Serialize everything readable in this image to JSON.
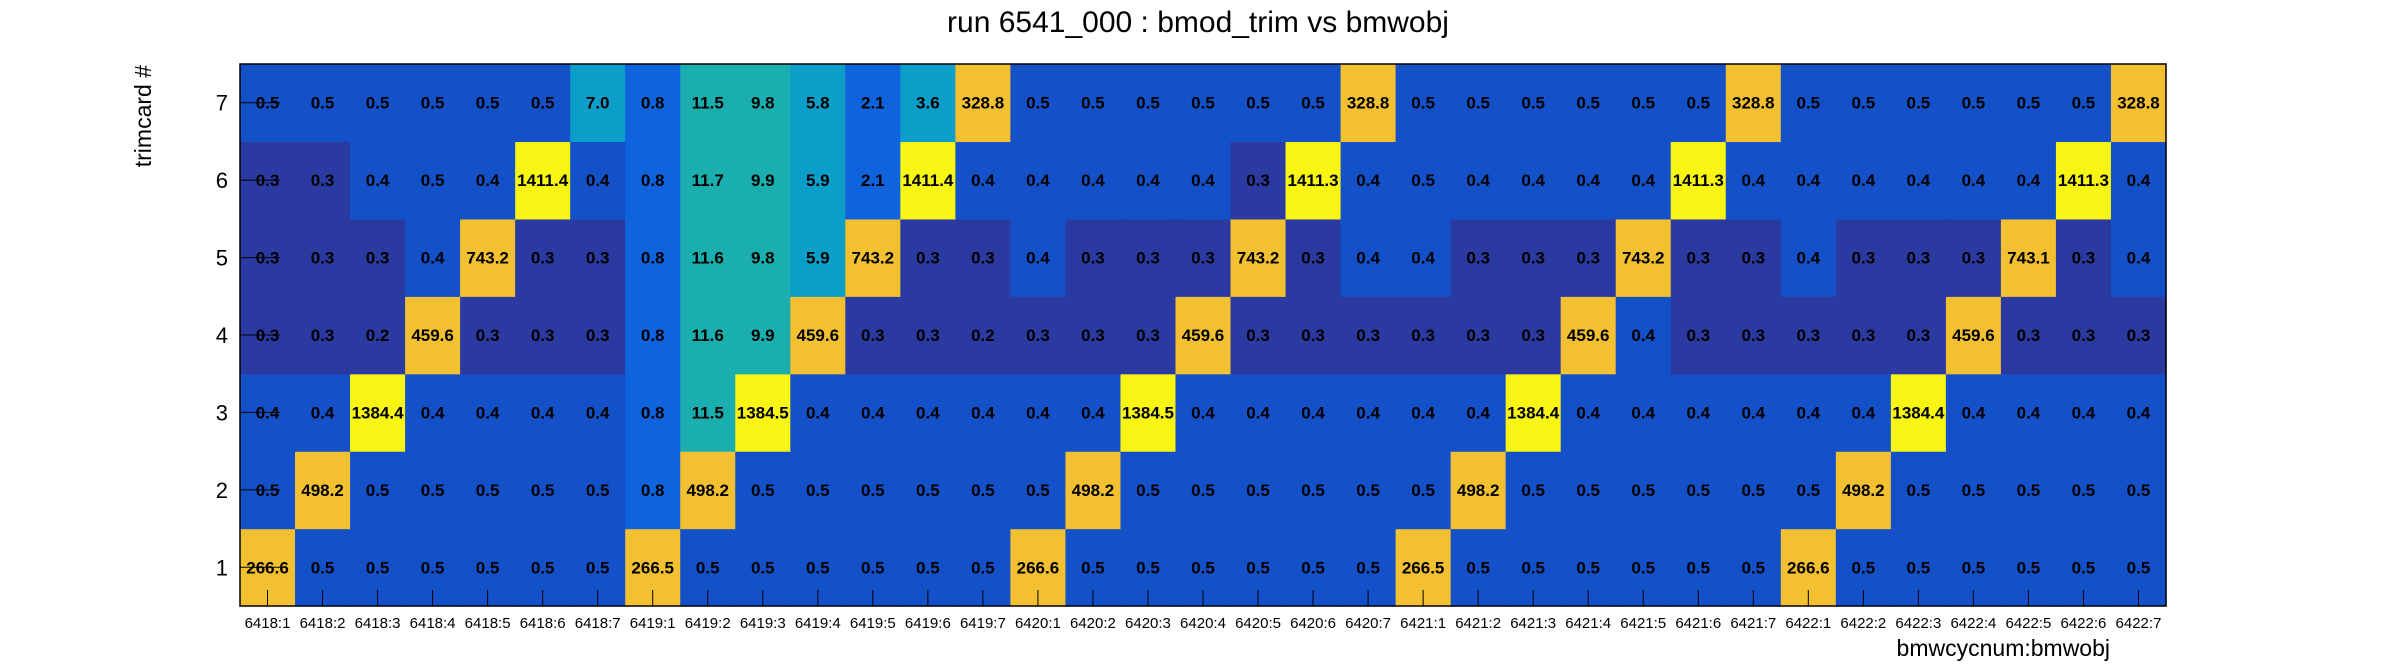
{
  "chart_data": {
    "type": "heatmap",
    "title": "run 6541_000 : bmod_trim vs bmwobj",
    "xlabel": "bmwcycnum:bmwobj",
    "ylabel": "trimcard #",
    "x_categories": [
      "6418:1",
      "6418:2",
      "6418:3",
      "6418:4",
      "6418:5",
      "6418:6",
      "6418:7",
      "6419:1",
      "6419:2",
      "6419:3",
      "6419:4",
      "6419:5",
      "6419:6",
      "6419:7",
      "6420:1",
      "6420:2",
      "6420:3",
      "6420:4",
      "6420:5",
      "6420:6",
      "6420:7",
      "6421:1",
      "6421:2",
      "6421:3",
      "6421:4",
      "6421:5",
      "6421:6",
      "6421:7",
      "6422:1",
      "6422:2",
      "6422:3",
      "6422:4",
      "6422:5",
      "6422:6",
      "6422:7"
    ],
    "y_categories": [
      "1",
      "2",
      "3",
      "4",
      "5",
      "6",
      "7"
    ],
    "values": [
      [
        266.6,
        0.5,
        0.5,
        0.5,
        0.5,
        0.5,
        0.5,
        266.5,
        0.5,
        0.5,
        0.5,
        0.5,
        0.5,
        0.5,
        266.6,
        0.5,
        0.5,
        0.5,
        0.5,
        0.5,
        0.5,
        266.5,
        0.5,
        0.5,
        0.5,
        0.5,
        0.5,
        0.5,
        266.6,
        0.5,
        0.5,
        0.5,
        0.5,
        0.5,
        0.5
      ],
      [
        0.5,
        498.2,
        0.5,
        0.5,
        0.5,
        0.5,
        0.5,
        0.8,
        498.2,
        0.5,
        0.5,
        0.5,
        0.5,
        0.5,
        0.5,
        498.2,
        0.5,
        0.5,
        0.5,
        0.5,
        0.5,
        0.5,
        498.2,
        0.5,
        0.5,
        0.5,
        0.5,
        0.5,
        0.5,
        498.2,
        0.5,
        0.5,
        0.5,
        0.5,
        0.5
      ],
      [
        0.4,
        0.4,
        1384.4,
        0.4,
        0.4,
        0.4,
        0.4,
        0.8,
        11.5,
        1384.5,
        0.4,
        0.4,
        0.4,
        0.4,
        0.4,
        0.4,
        1384.5,
        0.4,
        0.4,
        0.4,
        0.4,
        0.4,
        0.4,
        1384.4,
        0.4,
        0.4,
        0.4,
        0.4,
        0.4,
        0.4,
        1384.4,
        0.4,
        0.4,
        0.4,
        0.4
      ],
      [
        0.3,
        0.3,
        0.2,
        459.6,
        0.3,
        0.3,
        0.3,
        0.8,
        11.6,
        9.9,
        459.6,
        0.3,
        0.3,
        0.2,
        0.3,
        0.3,
        0.3,
        459.6,
        0.3,
        0.3,
        0.3,
        0.3,
        0.3,
        0.3,
        459.6,
        0.4,
        0.3,
        0.3,
        0.3,
        0.3,
        0.3,
        459.6,
        0.3,
        0.3,
        0.3
      ],
      [
        0.3,
        0.3,
        0.3,
        0.4,
        743.2,
        0.3,
        0.3,
        0.8,
        11.6,
        9.8,
        5.9,
        743.2,
        0.3,
        0.3,
        0.4,
        0.3,
        0.3,
        0.3,
        743.2,
        0.3,
        0.4,
        0.4,
        0.3,
        0.3,
        0.3,
        743.2,
        0.3,
        0.3,
        0.4,
        0.3,
        0.3,
        0.3,
        743.1,
        0.3,
        0.4
      ],
      [
        0.3,
        0.3,
        0.4,
        0.5,
        0.4,
        1411.4,
        0.4,
        0.8,
        11.7,
        9.9,
        5.9,
        2.1,
        1411.4,
        0.4,
        0.4,
        0.4,
        0.4,
        0.4,
        0.3,
        1411.3,
        0.4,
        0.5,
        0.4,
        0.4,
        0.4,
        0.4,
        1411.3,
        0.4,
        0.4,
        0.4,
        0.4,
        0.4,
        0.4,
        1411.3,
        0.4
      ],
      [
        0.5,
        0.5,
        0.5,
        0.5,
        0.5,
        0.5,
        7.0,
        0.8,
        11.5,
        9.8,
        5.8,
        2.1,
        3.6,
        328.8,
        0.5,
        0.5,
        0.5,
        0.5,
        0.5,
        0.5,
        328.8,
        0.5,
        0.5,
        0.5,
        0.5,
        0.5,
        0.5,
        328.8,
        0.5,
        0.5,
        0.5,
        0.5,
        0.5,
        0.5,
        328.8
      ]
    ],
    "grid": false,
    "legend": "none",
    "colors": {
      "low": "#2a3aa0",
      "base": "#1450c8",
      "mid": "#0f63dc",
      "cyan": "#0a9ec8",
      "teal": "#1aaeae",
      "orange": "#f2c030",
      "yellow": "#f8f514"
    }
  }
}
